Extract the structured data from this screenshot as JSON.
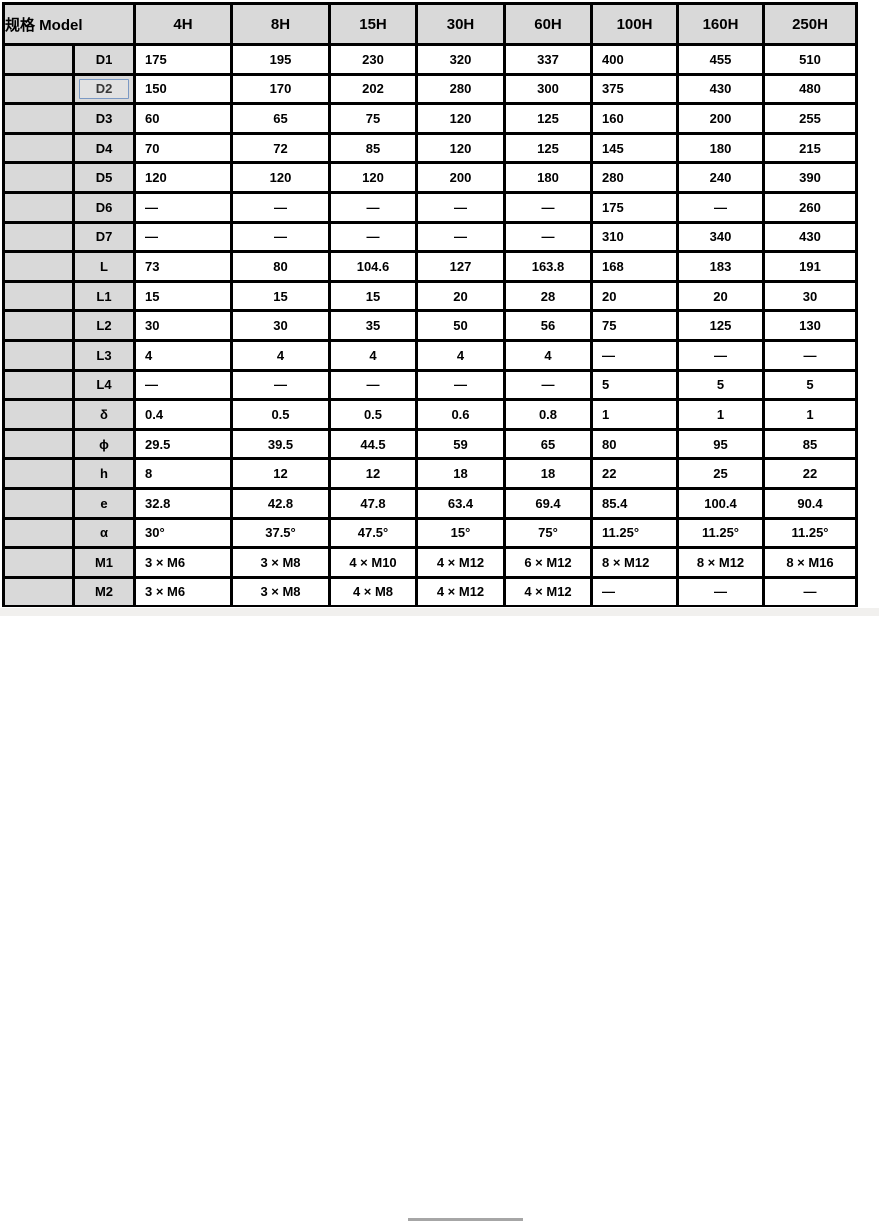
{
  "table": {
    "header": {
      "model_label": "规格 Model",
      "columns": [
        "4H",
        "8H",
        "15H",
        "30H",
        "60H",
        "100H",
        "160H",
        "250H"
      ]
    },
    "rows": [
      {
        "label": "D1",
        "values": [
          "175",
          "195",
          "230",
          "320",
          "337",
          "400",
          "455",
          "510"
        ]
      },
      {
        "label": "D2",
        "values": [
          "150",
          "170",
          "202",
          "280",
          "300",
          "375",
          "430",
          "480"
        ]
      },
      {
        "label": "D3",
        "values": [
          "60",
          "65",
          "75",
          "120",
          "125",
          "160",
          "200",
          "255"
        ]
      },
      {
        "label": "D4",
        "values": [
          "70",
          "72",
          "85",
          "120",
          "125",
          "145",
          "180",
          "215"
        ]
      },
      {
        "label": "D5",
        "values": [
          "120",
          "120",
          "120",
          "200",
          "180",
          "280",
          "240",
          "390"
        ]
      },
      {
        "label": "D6",
        "values": [
          "—",
          "—",
          "—",
          "—",
          "—",
          "175",
          "—",
          "260"
        ]
      },
      {
        "label": "D7",
        "values": [
          "—",
          "—",
          "—",
          "—",
          "—",
          "310",
          "340",
          "430"
        ]
      },
      {
        "label": "L",
        "values": [
          "73",
          "80",
          "104.6",
          "127",
          "163.8",
          "168",
          "183",
          "191"
        ]
      },
      {
        "label": "L1",
        "values": [
          "15",
          "15",
          "15",
          "20",
          "28",
          "20",
          "20",
          "30"
        ]
      },
      {
        "label": "L2",
        "values": [
          "30",
          "30",
          "35",
          "50",
          "56",
          "75",
          "125",
          "130"
        ]
      },
      {
        "label": "L3",
        "values": [
          "4",
          "4",
          "4",
          "4",
          "4",
          "—",
          "—",
          "—"
        ]
      },
      {
        "label": "L4",
        "values": [
          "—",
          "—",
          "—",
          "—",
          "—",
          "5",
          "5",
          "5"
        ]
      },
      {
        "label": "δ",
        "values": [
          "0.4",
          "0.5",
          "0.5",
          "0.6",
          "0.8",
          "1",
          "1",
          "1"
        ]
      },
      {
        "label": "ϕ",
        "values": [
          "29.5",
          "39.5",
          "44.5",
          "59",
          "65",
          "80",
          "95",
          "85"
        ]
      },
      {
        "label": "h",
        "values": [
          "8",
          "12",
          "12",
          "18",
          "18",
          "22",
          "25",
          "22"
        ]
      },
      {
        "label": "e",
        "values": [
          "32.8",
          "42.8",
          "47.8",
          "63.4",
          "69.4",
          "85.4",
          "100.4",
          "90.4"
        ]
      },
      {
        "label": "α",
        "values": [
          "30°",
          "37.5°",
          "47.5°",
          "15°",
          "75°",
          "11.25°",
          "11.25°",
          "11.25°"
        ]
      },
      {
        "label": "M1",
        "values": [
          "3 × M6",
          "3 × M8",
          "4 × M10",
          "4 × M12",
          "6 × M12",
          "8 × M12",
          "8 × M12",
          "8 × M16"
        ]
      },
      {
        "label": "M2",
        "values": [
          "3 × M6",
          "3 × M8",
          "4 × M8",
          "4 × M12",
          "4 × M12",
          "—",
          "—",
          "—"
        ]
      }
    ],
    "selection": {
      "selected_row_label": "D2"
    },
    "colors": {
      "cell_header_bg": "#d9d9d9",
      "cell_body_bg": "#ffffff",
      "grid_border": "#000000",
      "selection_border": "#7b99c4",
      "scrollbar_track": "#f1f0ee",
      "scrollbar_thumb": "#a6a6a6"
    }
  }
}
